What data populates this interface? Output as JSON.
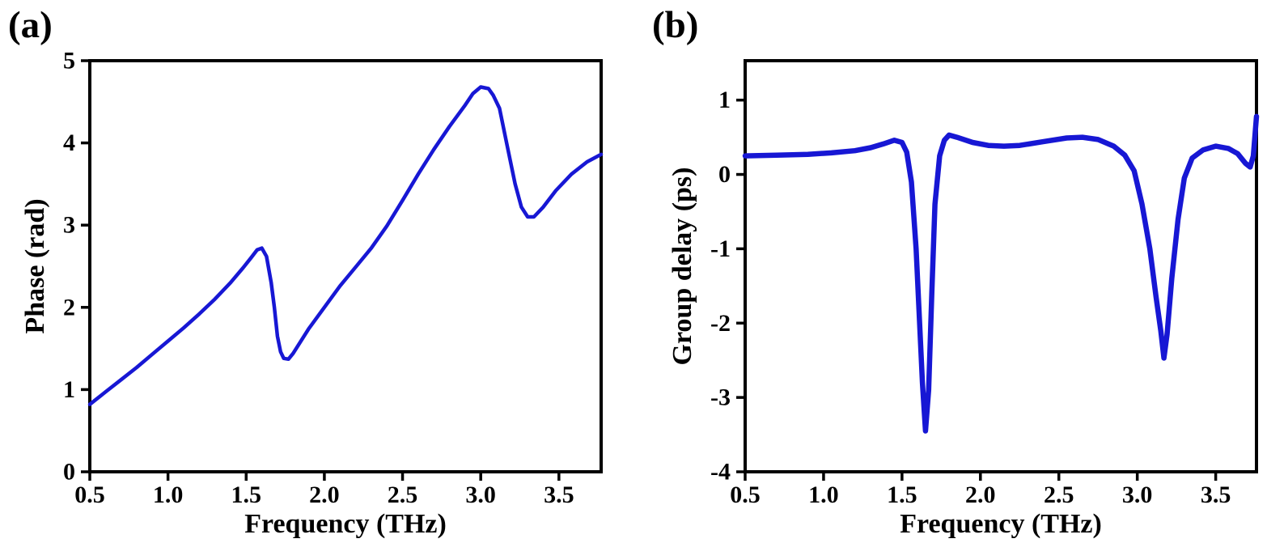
{
  "figure": {
    "background": "#ffffff",
    "frame_color": "#000000",
    "accent_blue": "#1717d4"
  },
  "chart_data": [
    {
      "type": "line",
      "panel_label": "(a)",
      "title": "",
      "xlabel": "Frequency (THz)",
      "ylabel": "Phase (rad)",
      "xlim": [
        0.5,
        3.77
      ],
      "ylim": [
        0,
        5
      ],
      "xticks": [
        0.5,
        1.0,
        1.5,
        2.0,
        2.5,
        3.0,
        3.5
      ],
      "xtick_labels": [
        "0.5",
        "1.0",
        "1.5",
        "2.0",
        "2.5",
        "3.0",
        "3.5"
      ],
      "yticks": [
        0,
        1,
        2,
        3,
        4,
        5
      ],
      "ytick_labels": [
        "0",
        "1",
        "2",
        "3",
        "4",
        "5"
      ],
      "grid": false,
      "legend": null,
      "line_color": "#1717d4",
      "line_width": 4.5,
      "series": [
        {
          "name": "Phase",
          "x": [
            0.5,
            0.6,
            0.7,
            0.8,
            0.9,
            1.0,
            1.1,
            1.2,
            1.3,
            1.4,
            1.48,
            1.53,
            1.57,
            1.6,
            1.63,
            1.66,
            1.68,
            1.7,
            1.72,
            1.74,
            1.77,
            1.8,
            1.9,
            2.0,
            2.1,
            2.2,
            2.3,
            2.4,
            2.5,
            2.6,
            2.7,
            2.8,
            2.9,
            2.95,
            3.0,
            3.05,
            3.08,
            3.12,
            3.17,
            3.22,
            3.26,
            3.3,
            3.34,
            3.4,
            3.48,
            3.58,
            3.68,
            3.77
          ],
          "y": [
            0.82,
            0.97,
            1.12,
            1.27,
            1.43,
            1.59,
            1.75,
            1.92,
            2.1,
            2.3,
            2.48,
            2.6,
            2.7,
            2.72,
            2.62,
            2.3,
            2.0,
            1.65,
            1.46,
            1.38,
            1.37,
            1.44,
            1.74,
            2.0,
            2.26,
            2.49,
            2.72,
            2.99,
            3.3,
            3.62,
            3.92,
            4.2,
            4.46,
            4.6,
            4.68,
            4.66,
            4.58,
            4.42,
            3.96,
            3.5,
            3.22,
            3.1,
            3.1,
            3.22,
            3.42,
            3.62,
            3.77,
            3.86
          ]
        }
      ]
    },
    {
      "type": "line",
      "panel_label": "(b)",
      "title": "",
      "xlabel": "Frequency (THz)",
      "ylabel": "Group delay (ps)",
      "xlim": [
        0.5,
        3.76
      ],
      "ylim": [
        -4,
        1.53
      ],
      "xticks": [
        0.5,
        1.0,
        1.5,
        2.0,
        2.5,
        3.0,
        3.5
      ],
      "xtick_labels": [
        "0.5",
        "1.0",
        "1.5",
        "2.0",
        "2.5",
        "3.0",
        "3.5"
      ],
      "yticks": [
        -4,
        -3,
        -2,
        -1,
        0,
        1
      ],
      "ytick_labels": [
        "-4",
        "-3",
        "-2",
        "-1",
        "0",
        "1"
      ],
      "grid": false,
      "legend": null,
      "line_color": "#1717d4",
      "line_width": 6.5,
      "series": [
        {
          "name": "Group delay",
          "x": [
            0.5,
            0.7,
            0.9,
            1.05,
            1.2,
            1.3,
            1.38,
            1.45,
            1.5,
            1.53,
            1.56,
            1.59,
            1.61,
            1.63,
            1.65,
            1.67,
            1.69,
            1.71,
            1.74,
            1.77,
            1.8,
            1.85,
            1.95,
            2.05,
            2.15,
            2.25,
            2.4,
            2.55,
            2.65,
            2.75,
            2.85,
            2.92,
            2.98,
            3.03,
            3.08,
            3.12,
            3.15,
            3.17,
            3.19,
            3.22,
            3.26,
            3.3,
            3.35,
            3.42,
            3.5,
            3.58,
            3.64,
            3.69,
            3.72,
            3.74,
            3.76
          ],
          "y": [
            0.25,
            0.26,
            0.27,
            0.29,
            0.32,
            0.36,
            0.41,
            0.46,
            0.43,
            0.3,
            -0.1,
            -1.0,
            -1.9,
            -2.8,
            -3.45,
            -2.9,
            -1.6,
            -0.4,
            0.25,
            0.46,
            0.53,
            0.5,
            0.43,
            0.39,
            0.38,
            0.39,
            0.44,
            0.49,
            0.5,
            0.47,
            0.38,
            0.26,
            0.05,
            -0.4,
            -1.0,
            -1.65,
            -2.1,
            -2.47,
            -2.15,
            -1.4,
            -0.6,
            -0.05,
            0.22,
            0.33,
            0.38,
            0.35,
            0.28,
            0.15,
            0.1,
            0.25,
            0.78
          ]
        }
      ]
    }
  ]
}
